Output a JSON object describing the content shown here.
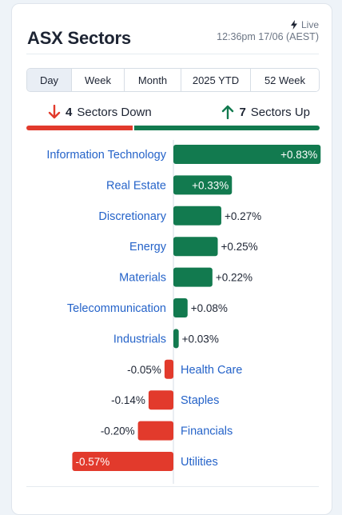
{
  "header": {
    "title": "ASX Sectors",
    "live_label": "Live",
    "timestamp": "12:36pm 17/06 (AEST)"
  },
  "tabs": [
    {
      "label": "Day",
      "active": true
    },
    {
      "label": "Week",
      "active": false
    },
    {
      "label": "Month",
      "active": false
    },
    {
      "label": "2025 YTD",
      "active": false
    },
    {
      "label": "52 Week",
      "active": false
    }
  ],
  "summary": {
    "down_count": "4",
    "down_text": "Sectors Down",
    "up_count": "7",
    "up_text": "Sectors Up"
  },
  "colors": {
    "up": "#127a4f",
    "down": "#e23a2c",
    "label": "#2563c9"
  },
  "chart_data": {
    "type": "bar",
    "orientation": "horizontal-diverging",
    "categories": [
      "Information Technology",
      "Real Estate",
      "Discretionary",
      "Energy",
      "Materials",
      "Telecommunication",
      "Industrials",
      "Health Care",
      "Staples",
      "Financials",
      "Utilities"
    ],
    "values": [
      0.83,
      0.33,
      0.27,
      0.25,
      0.22,
      0.08,
      0.03,
      -0.05,
      -0.14,
      -0.2,
      -0.57
    ],
    "labels": [
      "+0.83%",
      "+0.33%",
      "+0.27%",
      "+0.25%",
      "+0.22%",
      "+0.08%",
      "+0.03%",
      "-0.05%",
      "-0.14%",
      "-0.20%",
      "-0.57%"
    ],
    "grid": false
  }
}
